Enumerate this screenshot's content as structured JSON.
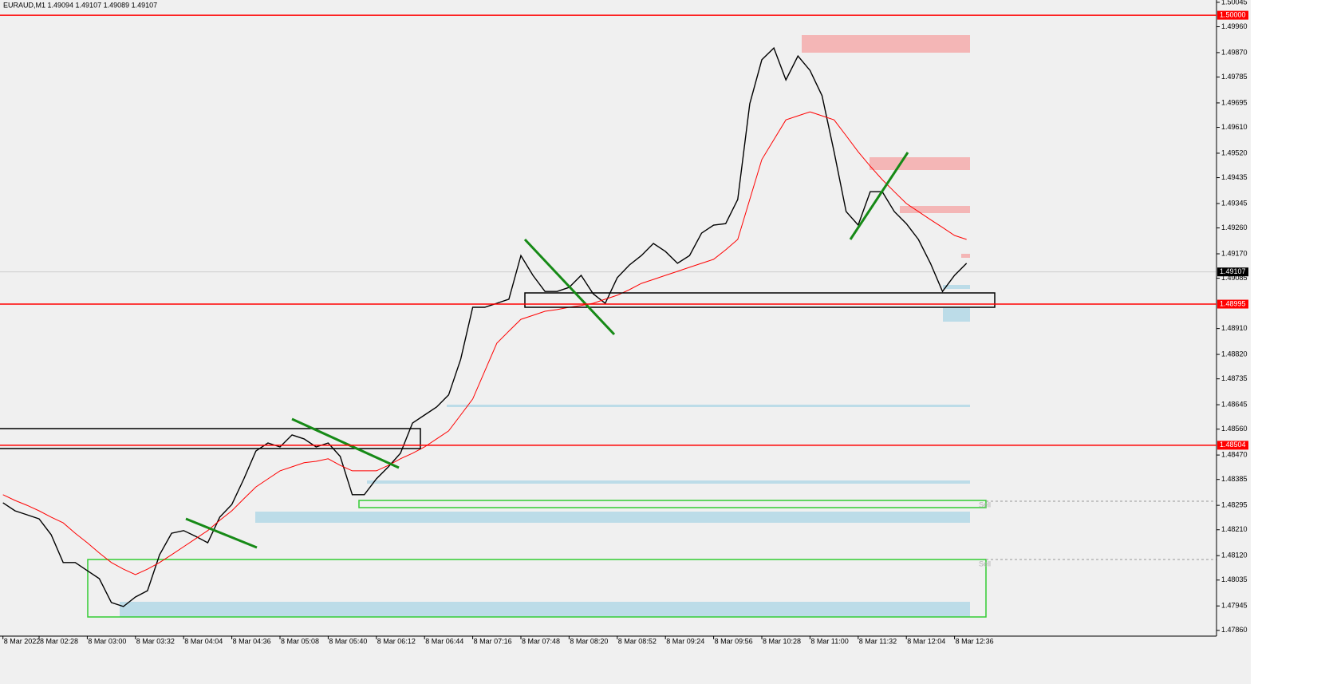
{
  "chart_data": {
    "type": "line",
    "title": "EURAUD,M1  1.49094 1.49107 1.49089 1.49107",
    "categories": [
      "8 Mar 2022",
      null,
      null,
      "8 Mar 02:28",
      null,
      null,
      null,
      "8 Mar 03:00",
      null,
      null,
      null,
      "8 Mar 03:32",
      null,
      null,
      null,
      "8 Mar 04:04",
      null,
      null,
      null,
      "8 Mar 04:36",
      null,
      null,
      null,
      "8 Mar 05:08",
      null,
      null,
      null,
      "8 Mar 05:40",
      null,
      null,
      null,
      "8 Mar 06:12",
      null,
      null,
      null,
      "8 Mar 06:44",
      null,
      null,
      null,
      "8 Mar 07:16",
      null,
      null,
      null,
      "8 Mar 07:48",
      null,
      null,
      null,
      "8 Mar 08:20",
      null,
      null,
      null,
      "8 Mar 08:52",
      null,
      null,
      null,
      "8 Mar 09:24",
      null,
      null,
      null,
      "8 Mar 09:56",
      null,
      null,
      null,
      "8 Mar 10:28",
      null,
      null,
      null,
      "8 Mar 11:00",
      null,
      null,
      null,
      "8 Mar 11:32",
      null,
      null,
      null,
      "8 Mar 12:04",
      null,
      null,
      null,
      "8 Mar 12:36",
      null
    ],
    "series": [
      {
        "color": "#000000",
        "values": [
          1.48304,
          1.48276,
          1.48262,
          1.48248,
          1.48193,
          1.48096,
          1.48096,
          1.48068,
          1.4804,
          1.47957,
          1.47943,
          1.47976,
          1.47998,
          1.48123,
          1.48198,
          1.48207,
          1.48187,
          1.48165,
          1.48254,
          1.48298,
          1.48387,
          1.48484,
          1.48512,
          1.48498,
          1.4854,
          1.48526,
          1.48498,
          1.48512,
          1.48465,
          1.48332,
          1.48332,
          1.48387,
          1.48429,
          1.48476,
          1.48581,
          1.48609,
          1.48637,
          1.48679,
          1.48803,
          1.48984,
          1.48984,
          1.48998,
          1.49012,
          1.49164,
          1.49095,
          1.49039,
          1.49039,
          1.49053,
          1.49095,
          1.49031,
          1.48998,
          1.49087,
          1.49131,
          1.49164,
          1.49206,
          1.49178,
          1.49137,
          1.49164,
          1.49242,
          1.4927,
          1.49275,
          1.49359,
          1.49692,
          1.49845,
          1.49886,
          1.49775,
          1.49858,
          1.49808,
          1.4972,
          1.49525,
          1.49317,
          1.4927,
          1.49386,
          1.49386,
          1.49317,
          1.49275,
          1.4922,
          1.49137,
          1.49039,
          1.49095,
          1.49137
        ]
      },
      {
        "color": "#ff0000",
        "values": [
          1.48332,
          1.48312,
          1.48295,
          1.48276,
          1.48254,
          1.48234,
          1.48198,
          1.48165,
          1.48129,
          1.48096,
          1.48073,
          1.48054,
          1.48073,
          1.48096,
          1.48123,
          1.48151,
          1.48179,
          1.48207,
          1.48243,
          1.48276,
          1.48318,
          1.48359,
          1.48387,
          1.48415,
          1.48429,
          1.48443,
          1.48448,
          1.48457,
          1.48434,
          1.48415,
          1.48415,
          1.48415,
          1.48434,
          1.48457,
          1.48476,
          1.48498,
          1.48526,
          1.48554,
          1.48609,
          1.48665,
          1.48762,
          1.48859,
          1.48901,
          1.48942,
          1.48956,
          1.4897,
          1.48976,
          1.48984,
          1.4899,
          1.48998,
          1.49012,
          1.49026,
          1.49045,
          1.49067,
          1.49081,
          1.49095,
          1.49109,
          1.49123,
          1.49137,
          1.49151,
          1.49184,
          1.4922,
          1.49359,
          1.49498,
          1.49567,
          1.49636,
          1.4965,
          1.49664,
          1.4965,
          1.49636,
          1.49581,
          1.49525,
          1.49475,
          1.49428,
          1.49386,
          1.49345,
          1.49317,
          1.49289,
          1.49262,
          1.49234,
          1.4922
        ]
      }
    ],
    "ylim": [
      1.4784,
      1.50053
    ],
    "yticks": [
      1.50045,
      {
        "value": 1.4996,
        "label": "1.49960"
      },
      {
        "value": 1.4987,
        "label": "1.49870"
      },
      1.49785,
      1.49695,
      {
        "value": 1.4961,
        "label": "1.49610"
      },
      {
        "value": 1.4952,
        "label": "1.49520"
      },
      1.49435,
      1.49345,
      {
        "value": 1.4926,
        "label": "1.49260"
      },
      {
        "value": 1.4917,
        "label": "1.49170"
      },
      1.49085,
      {
        "value": 1.4891,
        "label": "1.48910"
      },
      {
        "value": 1.4882,
        "label": "1.48820"
      },
      1.48735,
      1.48645,
      {
        "value": 1.4856,
        "label": "1.48560"
      },
      {
        "value": 1.4847,
        "label": "1.48470"
      },
      1.48385,
      1.48295,
      {
        "value": 1.4821,
        "label": "1.48210"
      },
      {
        "value": 1.4812,
        "label": "1.48120"
      },
      1.48035,
      1.47945,
      {
        "value": 1.4786,
        "label": "1.47860"
      }
    ],
    "levels": [
      {
        "value": 1.5,
        "label": "1.50000",
        "color": "#ff0000"
      },
      {
        "value": 1.48995,
        "label": "1.48995",
        "color": "#ff0000"
      },
      {
        "value": 1.48504,
        "label": "1.48504",
        "color": "#ff0000"
      }
    ],
    "current": {
      "value": 1.49107,
      "label": "1.49107",
      "color": "#000000"
    },
    "order_labels": [
      "Sell",
      "Sell"
    ]
  }
}
